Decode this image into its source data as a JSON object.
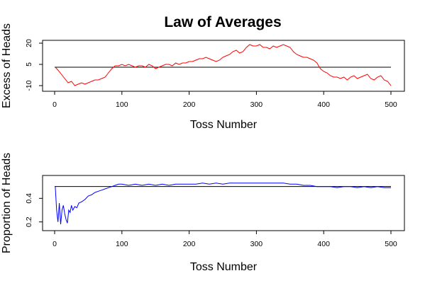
{
  "title": "Law of Averages",
  "chart_data": [
    {
      "type": "line",
      "xlabel": "Toss Number",
      "ylabel": "Excess of Heads",
      "xlim": [
        0,
        500
      ],
      "ylim": [
        -12,
        20
      ],
      "xticks": [
        "0",
        "100",
        "200",
        "300",
        "400",
        "500"
      ],
      "xtick_values": [
        0,
        100,
        200,
        300,
        400,
        500
      ],
      "yticks": [
        "-10",
        "5",
        "20"
      ],
      "ytick_values": [
        -10,
        5,
        20
      ],
      "reference_y": 3,
      "grid": false,
      "series": [
        {
          "color": "#ff0000",
          "x": [
            1,
            5,
            10,
            15,
            20,
            25,
            30,
            35,
            40,
            45,
            50,
            55,
            60,
            65,
            70,
            75,
            80,
            85,
            90,
            95,
            100,
            105,
            110,
            115,
            120,
            125,
            130,
            135,
            140,
            145,
            150,
            155,
            160,
            165,
            170,
            175,
            180,
            185,
            190,
            195,
            200,
            205,
            210,
            215,
            220,
            225,
            230,
            235,
            240,
            245,
            250,
            255,
            260,
            265,
            270,
            275,
            280,
            285,
            290,
            295,
            300,
            305,
            310,
            315,
            320,
            325,
            330,
            335,
            340,
            345,
            350,
            355,
            360,
            365,
            370,
            375,
            380,
            385,
            390,
            395,
            400,
            405,
            410,
            415,
            420,
            425,
            430,
            435,
            440,
            445,
            450,
            455,
            460,
            465,
            470,
            475,
            480,
            485,
            490,
            495,
            500
          ],
          "y": [
            3,
            1,
            -2,
            -5,
            -8,
            -7,
            -10,
            -9,
            -8,
            -9,
            -8,
            -7,
            -6,
            -6,
            -5,
            -4,
            -1,
            2,
            4,
            4,
            5,
            4,
            5,
            4,
            3,
            4,
            4,
            3,
            5,
            4,
            2,
            3,
            4,
            5,
            5,
            4,
            6,
            5,
            6,
            6,
            7,
            7,
            8,
            9,
            9,
            10,
            9,
            8,
            7,
            8,
            10,
            11,
            12,
            14,
            15,
            13,
            14,
            17,
            19,
            18,
            18,
            19,
            17,
            17,
            16,
            18,
            17,
            18,
            19,
            18,
            17,
            14,
            12,
            11,
            10,
            10,
            9,
            8,
            6,
            2,
            0,
            -1,
            -3,
            -4,
            -4,
            -5,
            -4,
            -6,
            -4,
            -3,
            -5,
            -4,
            -3,
            -2,
            -5,
            -6,
            -4,
            -3,
            -6,
            -7,
            -10
          ]
        }
      ]
    },
    {
      "type": "line",
      "xlabel": "Toss Number",
      "ylabel": "Proportion of Heads",
      "xlim": [
        0,
        500
      ],
      "ylim": [
        0.15,
        0.57
      ],
      "xticks": [
        "0",
        "100",
        "200",
        "300",
        "400",
        "500"
      ],
      "xtick_values": [
        0,
        100,
        200,
        300,
        400,
        500
      ],
      "yticks": [
        "0.2",
        "0.4"
      ],
      "ytick_values": [
        0.2,
        0.4
      ],
      "reference_y": 0.5,
      "grid": false,
      "series": [
        {
          "color": "#0000ff",
          "x": [
            1,
            3,
            5,
            7,
            9,
            11,
            13,
            15,
            17,
            19,
            21,
            23,
            25,
            27,
            30,
            33,
            36,
            40,
            45,
            50,
            55,
            60,
            65,
            70,
            75,
            80,
            85,
            90,
            95,
            100,
            110,
            120,
            130,
            140,
            150,
            160,
            170,
            180,
            190,
            200,
            210,
            220,
            230,
            240,
            250,
            260,
            270,
            280,
            290,
            300,
            310,
            320,
            330,
            340,
            350,
            360,
            370,
            380,
            390,
            400,
            410,
            420,
            430,
            440,
            450,
            460,
            470,
            480,
            490,
            500
          ],
          "y": [
            0.5,
            0.3,
            0.2,
            0.36,
            0.18,
            0.3,
            0.34,
            0.27,
            0.22,
            0.19,
            0.3,
            0.28,
            0.34,
            0.3,
            0.33,
            0.32,
            0.36,
            0.37,
            0.39,
            0.42,
            0.43,
            0.45,
            0.46,
            0.47,
            0.48,
            0.49,
            0.5,
            0.51,
            0.52,
            0.52,
            0.51,
            0.52,
            0.51,
            0.52,
            0.51,
            0.52,
            0.51,
            0.52,
            0.52,
            0.52,
            0.52,
            0.53,
            0.52,
            0.53,
            0.52,
            0.53,
            0.53,
            0.53,
            0.53,
            0.53,
            0.53,
            0.53,
            0.53,
            0.53,
            0.52,
            0.52,
            0.51,
            0.51,
            0.5,
            0.5,
            0.5,
            0.49,
            0.5,
            0.5,
            0.49,
            0.5,
            0.49,
            0.5,
            0.49,
            0.49
          ]
        }
      ]
    }
  ]
}
